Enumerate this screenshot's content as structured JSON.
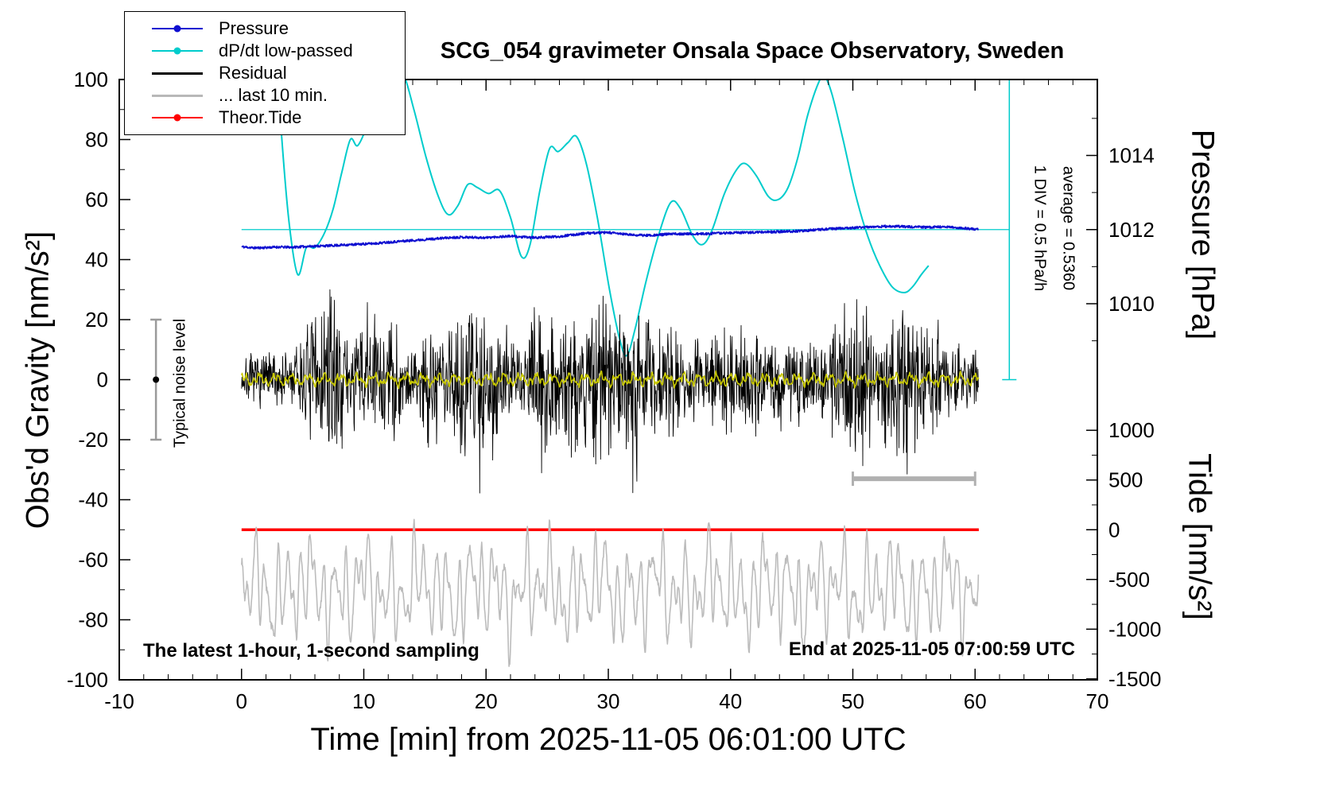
{
  "title": "SCG_054 gravimeter Onsala Space Observatory, Sweden",
  "legend": {
    "items": [
      {
        "label": "Pressure",
        "color": "#0f0fd0",
        "dot": true,
        "lw": 2.5
      },
      {
        "label": "dP/dt low-passed",
        "color": "#00cccc",
        "dot": true,
        "lw": 2.5
      },
      {
        "label": "Residual",
        "color": "#000000",
        "dot": false,
        "lw": 3
      },
      {
        "label": "... last 10 min.",
        "color": "#b8b8b8",
        "dot": false,
        "lw": 3
      },
      {
        "label": "Theor.Tide",
        "color": "#ff0000",
        "dot": true,
        "lw": 2.5
      }
    ]
  },
  "axes": {
    "xlabel": "Time [min] from 2025-11-05 06:01:00 UTC",
    "ylabel": "Obs'd Gravity [nm/s²]",
    "y2label_top": "Pressure [hPa]",
    "y2label_bottom": "Tide [nm/s²]",
    "x_range": [
      -10,
      70
    ],
    "y_range": [
      -100,
      100
    ],
    "x_major": [
      -10,
      0,
      10,
      20,
      30,
      40,
      50,
      60,
      70
    ],
    "x_minor_step": 2,
    "y_major": [
      -100,
      -80,
      -60,
      -40,
      -20,
      0,
      20,
      40,
      60,
      80,
      100
    ],
    "y_minor_step": 10,
    "pressure_major": [
      {
        "p": 1010,
        "label": "1010"
      },
      {
        "p": 1012,
        "label": "1012"
      },
      {
        "p": 1014,
        "label": "1014"
      }
    ],
    "pressure_minor": [
      1009,
      1011,
      1013,
      1015
    ],
    "pressure_ref": {
      "p0": 1012,
      "g0": 50,
      "g_per_hpa": 12.35
    },
    "tide_major": [
      {
        "t": 1000,
        "label": "1000"
      },
      {
        "t": 500,
        "label": "500"
      },
      {
        "t": 0,
        "label": "0"
      },
      {
        "t": -500,
        "label": "-500"
      },
      {
        "t": -1000,
        "label": "-1000"
      },
      {
        "t": -1500,
        "label": "-1500"
      }
    ],
    "tide_minor": [
      750,
      250,
      -250,
      -750,
      -1250
    ],
    "tide_ref": {
      "t0": 0,
      "g0": -50,
      "g_per_unit": 0.03313
    }
  },
  "annotations": {
    "sampling_note": "The latest 1-hour, 1-second sampling",
    "end_note": "End at 2025-11-05 07:00:59 UTC",
    "noise_label": "Typical noise level",
    "div_label": "1 DIV = 0.5 hPa/h",
    "average_label": "average = 0.5360",
    "noise_bar": {
      "x": -7,
      "g_from": -20,
      "g_to": 20,
      "dot_g": 0,
      "color": "#9a9a9a"
    },
    "div_bar": {
      "x": 62.8,
      "g_from": 0,
      "g_to": 100,
      "color": "#00cccc"
    },
    "window_bar": {
      "x_from": 50,
      "x_to": 60,
      "g": -33,
      "color": "#b0b0b0"
    },
    "ref_line": {
      "g": 50,
      "x_from": 0,
      "x_to": 62.8,
      "color": "#00cccc"
    }
  },
  "chart_data": {
    "type": "line",
    "x_unit": "min",
    "y_unit": "nm/s²",
    "title": "SCG_054 gravimeter Onsala Space Observatory, Sweden",
    "xlim": [
      -10,
      70
    ],
    "ylim": [
      -100,
      100
    ],
    "series": [
      {
        "id": "dpdt",
        "name": "dP/dt low-passed",
        "kind": "smooth",
        "color": "#00cccc",
        "width": 2,
        "points": [
          [
            2.9,
            108
          ],
          [
            3.3,
            80
          ],
          [
            3.9,
            52
          ],
          [
            4.6,
            35
          ],
          [
            5.3,
            44
          ],
          [
            6.0,
            44
          ],
          [
            6.8,
            49
          ],
          [
            7.5,
            57
          ],
          [
            8.2,
            69
          ],
          [
            8.9,
            80
          ],
          [
            9.5,
            78
          ],
          [
            10.3,
            85
          ],
          [
            11.2,
            96
          ],
          [
            12.2,
            104
          ],
          [
            13.2,
            102
          ],
          [
            14.1,
            90
          ],
          [
            15.1,
            74
          ],
          [
            16.1,
            61
          ],
          [
            16.9,
            55
          ],
          [
            17.7,
            58
          ],
          [
            18.5,
            65
          ],
          [
            19.3,
            64
          ],
          [
            20.2,
            62
          ],
          [
            21.1,
            63
          ],
          [
            22.0,
            54
          ],
          [
            22.9,
            41
          ],
          [
            23.6,
            45
          ],
          [
            24.4,
            63
          ],
          [
            25.2,
            77
          ],
          [
            25.9,
            76
          ],
          [
            26.7,
            79
          ],
          [
            27.4,
            81
          ],
          [
            28.2,
            72
          ],
          [
            29.1,
            54
          ],
          [
            30.1,
            30
          ],
          [
            30.9,
            14
          ],
          [
            31.5,
            8
          ],
          [
            32.2,
            17
          ],
          [
            33.1,
            33
          ],
          [
            34.1,
            48
          ],
          [
            35.1,
            59
          ],
          [
            35.9,
            57
          ],
          [
            36.9,
            48
          ],
          [
            37.7,
            45
          ],
          [
            38.5,
            50
          ],
          [
            39.5,
            62
          ],
          [
            40.5,
            70
          ],
          [
            41.2,
            72
          ],
          [
            42.1,
            68
          ],
          [
            43.1,
            61
          ],
          [
            43.9,
            60
          ],
          [
            44.7,
            64
          ],
          [
            45.5,
            74
          ],
          [
            46.3,
            88
          ],
          [
            47.2,
            99
          ],
          [
            47.7,
            101
          ],
          [
            48.3,
            95
          ],
          [
            49.2,
            80
          ],
          [
            50.2,
            62
          ],
          [
            51.2,
            48
          ],
          [
            52.2,
            38
          ],
          [
            53.2,
            31
          ],
          [
            54.2,
            29
          ],
          [
            54.9,
            31
          ],
          [
            55.6,
            35
          ],
          [
            56.2,
            38
          ]
        ]
      },
      {
        "id": "pressure",
        "name": "Pressure",
        "kind": "trend_noise",
        "color": "#0f0fd0",
        "width": 1.8,
        "seed": 11,
        "noise_amp": 0.38,
        "dt": 0.0333,
        "x_from": 0,
        "x_to": 60.3,
        "points": [
          [
            0,
            44.3
          ],
          [
            1,
            43.9
          ],
          [
            2,
            44.0
          ],
          [
            3,
            44.2
          ],
          [
            4,
            44.1
          ],
          [
            5,
            44.3
          ],
          [
            6,
            44.5
          ],
          [
            7,
            44.6
          ],
          [
            8,
            44.8
          ],
          [
            9,
            45.0
          ],
          [
            10,
            45.2
          ],
          [
            11,
            45.4
          ],
          [
            12,
            45.8
          ],
          [
            13,
            46.1
          ],
          [
            14,
            46.4
          ],
          [
            15,
            46.7
          ],
          [
            16,
            47.0
          ],
          [
            17,
            47.3
          ],
          [
            18,
            47.5
          ],
          [
            19,
            47.4
          ],
          [
            20,
            47.3
          ],
          [
            21,
            47.6
          ],
          [
            22,
            47.8
          ],
          [
            23,
            47.5
          ],
          [
            24,
            47.3
          ],
          [
            25,
            47.5
          ],
          [
            26,
            47.7
          ],
          [
            27,
            48.2
          ],
          [
            28,
            48.7
          ],
          [
            29,
            48.9
          ],
          [
            30,
            49.0
          ],
          [
            31,
            48.6
          ],
          [
            32,
            48.2
          ],
          [
            33,
            48.1
          ],
          [
            34,
            48.2
          ],
          [
            35,
            48.5
          ],
          [
            36,
            48.6
          ],
          [
            37,
            48.5
          ],
          [
            38,
            48.6
          ],
          [
            39,
            48.8
          ],
          [
            40,
            48.9
          ],
          [
            41,
            49.0
          ],
          [
            42,
            49.1
          ],
          [
            43,
            49.2
          ],
          [
            44,
            49.3
          ],
          [
            45,
            49.4
          ],
          [
            46,
            49.6
          ],
          [
            47,
            49.9
          ],
          [
            48,
            50.2
          ],
          [
            49,
            50.4
          ],
          [
            50,
            50.6
          ],
          [
            51,
            50.8
          ],
          [
            52,
            51.0
          ],
          [
            53,
            51.1
          ],
          [
            54,
            51.0
          ],
          [
            55,
            50.9
          ],
          [
            56,
            50.8
          ],
          [
            57,
            50.9
          ],
          [
            58,
            50.8
          ],
          [
            59,
            50.5
          ],
          [
            60,
            50.1
          ]
        ]
      },
      {
        "id": "residual",
        "name": "Residual",
        "kind": "noise",
        "color": "#000000",
        "width": 0.9,
        "seed": 7,
        "dt": 0.0333,
        "x_from": 0,
        "x_to": 60.3,
        "envelope": [
          [
            0,
            7
          ],
          [
            2,
            9
          ],
          [
            4,
            10
          ],
          [
            5,
            14
          ],
          [
            6,
            25
          ],
          [
            7,
            32
          ],
          [
            8,
            20
          ],
          [
            9,
            16
          ],
          [
            10,
            22
          ],
          [
            11,
            25
          ],
          [
            12,
            22
          ],
          [
            13,
            14
          ],
          [
            14,
            12
          ],
          [
            15,
            20
          ],
          [
            16,
            24
          ],
          [
            17,
            22
          ],
          [
            18,
            26
          ],
          [
            19,
            30
          ],
          [
            20,
            28
          ],
          [
            21,
            22
          ],
          [
            22,
            14
          ],
          [
            23,
            13
          ],
          [
            24,
            20
          ],
          [
            25,
            26
          ],
          [
            26,
            22
          ],
          [
            27,
            24
          ],
          [
            28,
            28
          ],
          [
            29,
            34
          ],
          [
            30,
            26
          ],
          [
            31,
            20
          ],
          [
            32,
            28
          ],
          [
            33,
            22
          ],
          [
            34,
            20
          ],
          [
            35,
            18
          ],
          [
            36,
            16
          ],
          [
            37,
            14
          ],
          [
            38,
            15
          ],
          [
            39,
            17
          ],
          [
            40,
            16
          ],
          [
            41,
            15
          ],
          [
            42,
            16
          ],
          [
            43,
            14
          ],
          [
            44,
            15
          ],
          [
            45,
            13
          ],
          [
            46,
            14
          ],
          [
            47,
            15
          ],
          [
            48,
            16
          ],
          [
            49,
            24
          ],
          [
            50,
            28
          ],
          [
            51,
            20
          ],
          [
            52,
            18
          ],
          [
            53,
            24
          ],
          [
            54,
            28
          ],
          [
            55,
            24
          ],
          [
            56,
            20
          ],
          [
            57,
            16
          ],
          [
            58,
            15
          ],
          [
            59,
            14
          ],
          [
            60,
            13
          ]
        ]
      },
      {
        "id": "residual-lowpass",
        "name": "Residual low-passed",
        "kind": "sines",
        "color": "#c8c800",
        "width": 1.6,
        "seed": 5,
        "base": 0,
        "amp": 1.8,
        "jitter": 0.35,
        "dt": 0.05,
        "x_from": 0,
        "x_to": 60.3,
        "components": [
          [
            0.75,
            0.7,
            1.0
          ],
          [
            1.9,
            0.45,
            2.6
          ],
          [
            3.1,
            0.3,
            0.4
          ],
          [
            6.3,
            0.2,
            5.1
          ]
        ]
      },
      {
        "id": "theor-tide",
        "name": "Theor.Tide",
        "kind": "flat",
        "color": "#ff0000",
        "width": 3.5,
        "x_from": 0,
        "x_to": 60.3,
        "value": -50
      },
      {
        "id": "last10",
        "name": "... last 10 min.",
        "kind": "sines",
        "color": "#bcbcbc",
        "width": 1.6,
        "seed": 9,
        "base": -70,
        "amp": 18,
        "jitter": 1.2,
        "dt": 0.0333,
        "x_from": 0,
        "x_to": 60.3,
        "components": [
          [
            1.08,
            0.52,
            0.3
          ],
          [
            1.62,
            0.33,
            2.1
          ],
          [
            0.46,
            0.3,
            4.0
          ],
          [
            2.35,
            0.16,
            1.2
          ],
          [
            0.21,
            0.18,
            0.9
          ]
        ]
      }
    ]
  }
}
